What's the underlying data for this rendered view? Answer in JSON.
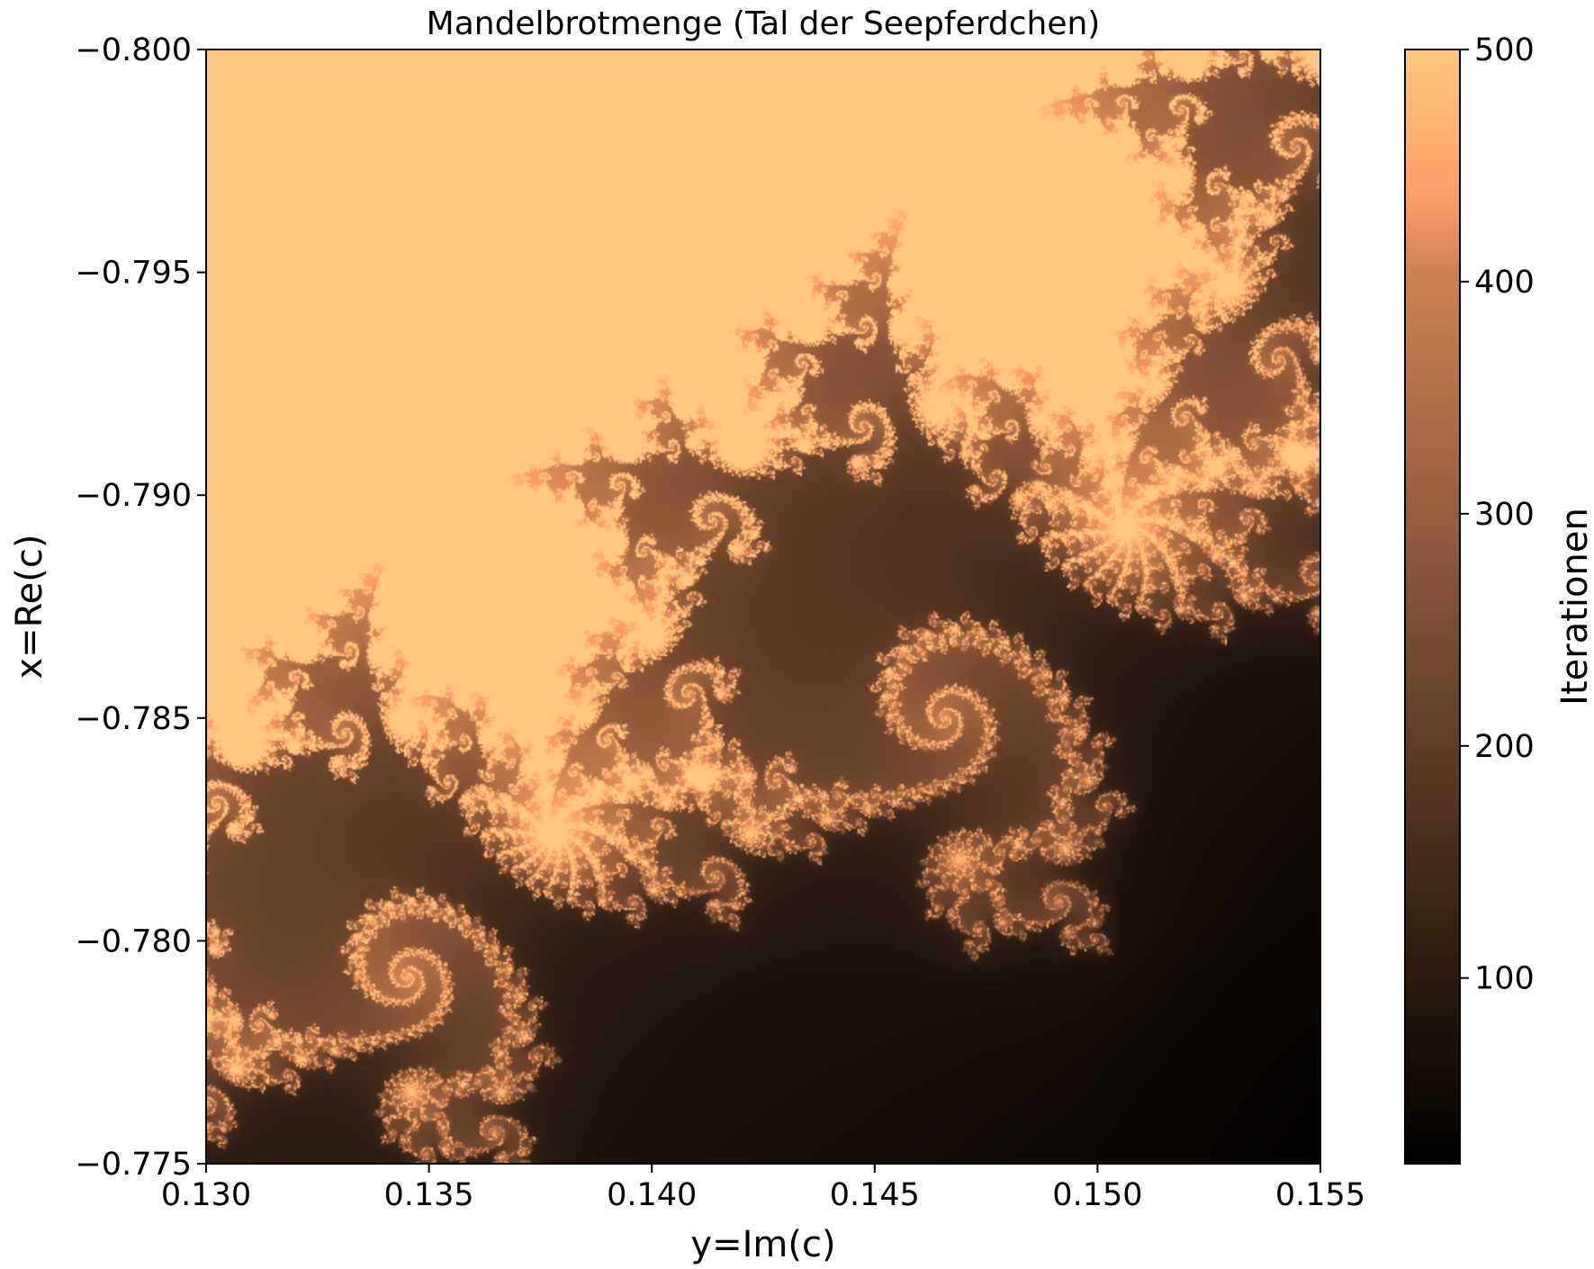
{
  "chart_data": {
    "type": "heatmap",
    "title": "Mandelbrotmenge (Tal der Seepferdchen)",
    "xlabel": "y=Im(c)",
    "ylabel": "x=Re(c)",
    "xlim": [
      0.13,
      0.155
    ],
    "ylim": [
      -0.8,
      -0.775
    ],
    "y_inverted": true,
    "x_ticks": [
      "0.130",
      "0.135",
      "0.140",
      "0.145",
      "0.150",
      "0.155"
    ],
    "x_tick_values": [
      0.13,
      0.135,
      0.14,
      0.145,
      0.15,
      0.155
    ],
    "y_ticks": [
      "−0.800",
      "−0.795",
      "−0.790",
      "−0.785",
      "−0.780",
      "−0.775"
    ],
    "y_tick_values": [
      -0.8,
      -0.795,
      -0.79,
      -0.785,
      -0.78,
      -0.775
    ],
    "colorbar": {
      "label": "Iterationen",
      "range": [
        20,
        500
      ],
      "ticks": [
        "100",
        "200",
        "300",
        "400",
        "500"
      ],
      "tick_values": [
        100,
        200,
        300,
        400,
        500
      ],
      "colormap": "copper"
    },
    "max_iterations": 500,
    "grid": false,
    "colors": {
      "inside": "#ffc77f",
      "outside": "#000000"
    }
  }
}
